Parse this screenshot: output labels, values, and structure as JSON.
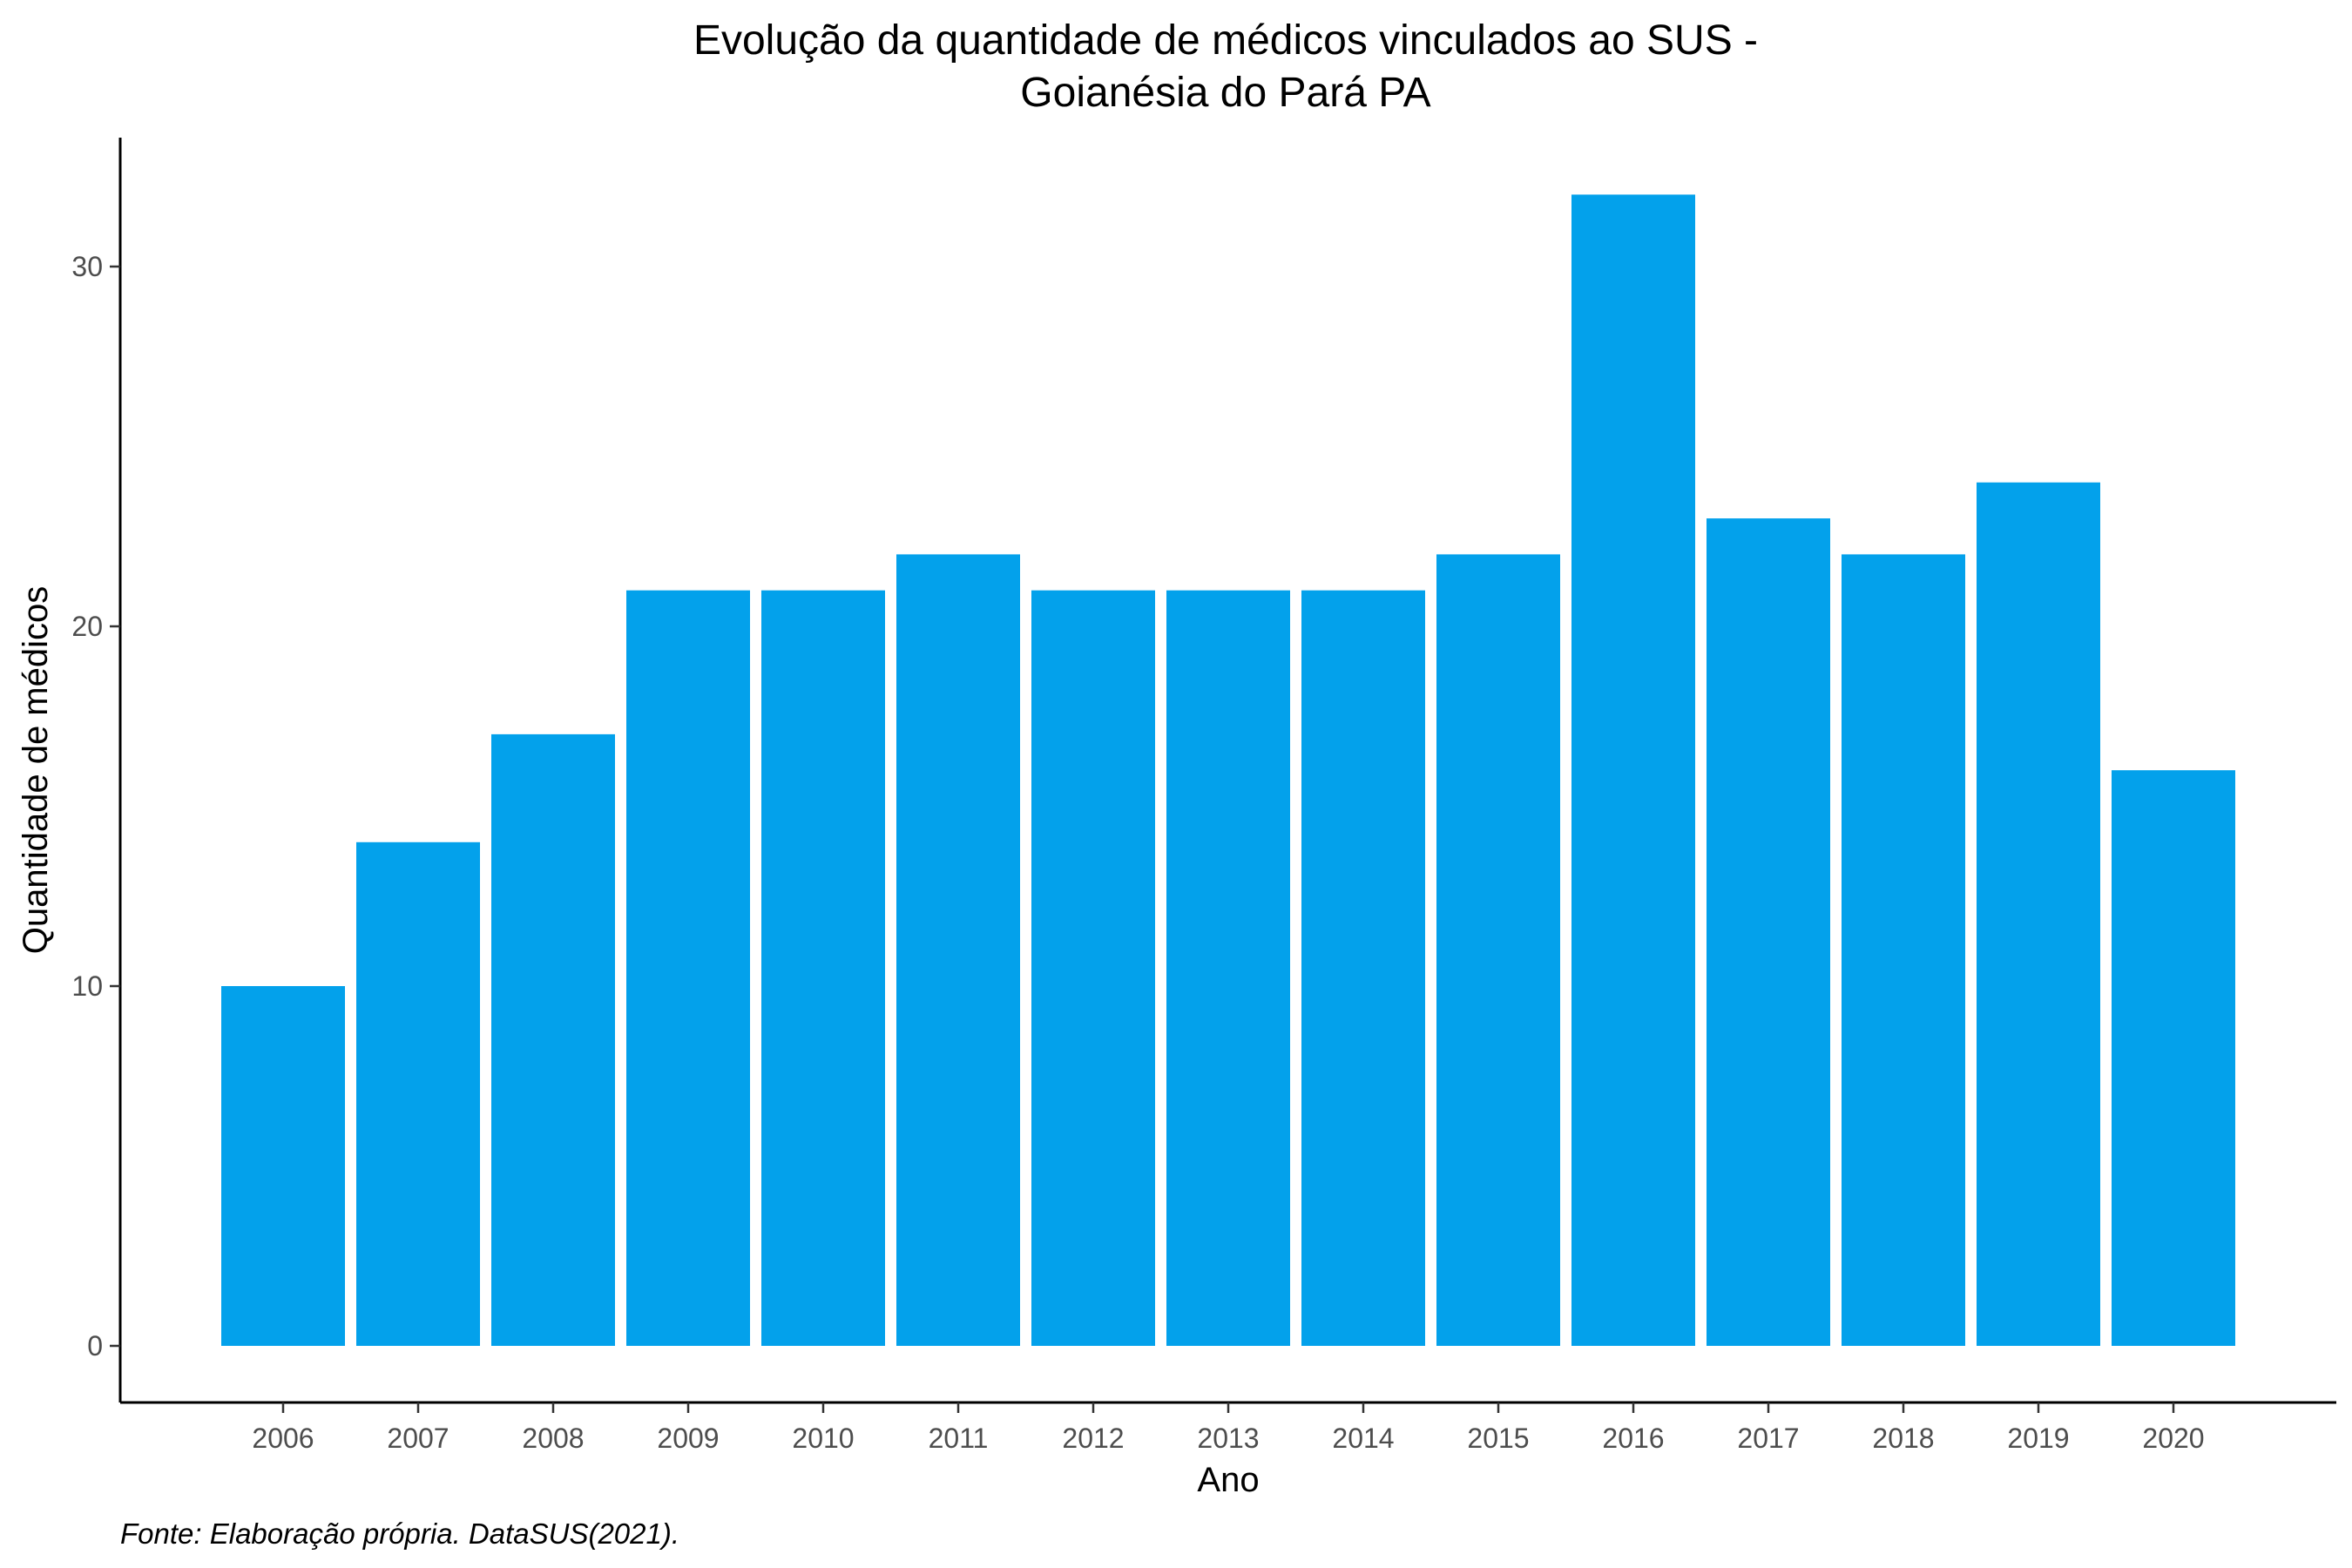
{
  "chart_data": {
    "type": "bar",
    "title_lines": [
      "Evolução da quantidade de médicos vinculados ao SUS -",
      "Goianésia do Pará PA"
    ],
    "xlabel": "Ano",
    "ylabel": "Quantidade de médicos",
    "categories": [
      "2006",
      "2007",
      "2008",
      "2009",
      "2010",
      "2011",
      "2012",
      "2013",
      "2014",
      "2015",
      "2016",
      "2017",
      "2018",
      "2019",
      "2020"
    ],
    "values": [
      10,
      14,
      17,
      21,
      21,
      22,
      21,
      21,
      21,
      22,
      32,
      23,
      22,
      24,
      16
    ],
    "yticks": [
      0,
      10,
      20,
      30
    ],
    "ylim": [
      -1.6,
      33.6
    ],
    "bar_color": "#03a1eb",
    "grid": false,
    "legend": "none",
    "caption": "Fonte: Elaboração própria. DataSUS(2021)."
  }
}
